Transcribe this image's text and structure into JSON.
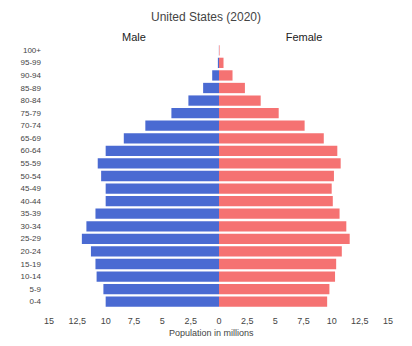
{
  "chart_data": {
    "type": "bar",
    "orientation": "horizontal",
    "title": "United States (2020)",
    "xlabel": "Population in millions",
    "categories": [
      "0-4",
      "5-9",
      "10-14",
      "15-19",
      "20-24",
      "25-29",
      "30-34",
      "35-39",
      "40-44",
      "45-49",
      "50-54",
      "55-59",
      "60-64",
      "65-69",
      "70-74",
      "75-79",
      "80-84",
      "85-89",
      "90-94",
      "95-99",
      "100+"
    ],
    "series": [
      {
        "name": "Male",
        "color": "#4a6ad2",
        "values": [
          10.0,
          10.2,
          10.8,
          10.9,
          11.3,
          12.1,
          11.7,
          10.9,
          10.0,
          10.0,
          10.4,
          10.7,
          10.0,
          8.4,
          6.5,
          4.2,
          2.7,
          1.4,
          0.6,
          0.1,
          0.01
        ]
      },
      {
        "name": "Female",
        "color": "#f57272",
        "values": [
          9.6,
          9.8,
          10.3,
          10.4,
          10.9,
          11.6,
          11.3,
          10.7,
          10.1,
          10.0,
          10.2,
          10.8,
          10.5,
          9.3,
          7.6,
          5.3,
          3.7,
          2.3,
          1.2,
          0.4,
          0.05
        ]
      }
    ],
    "xlim": [
      0,
      15
    ],
    "xticks": [
      0,
      {
        "value": 2.5,
        "label": "2,5"
      },
      5,
      {
        "value": 7.5,
        "label": "7,5"
      },
      10,
      {
        "value": 12.5,
        "label": "12,5"
      },
      15
    ],
    "grid": false
  }
}
